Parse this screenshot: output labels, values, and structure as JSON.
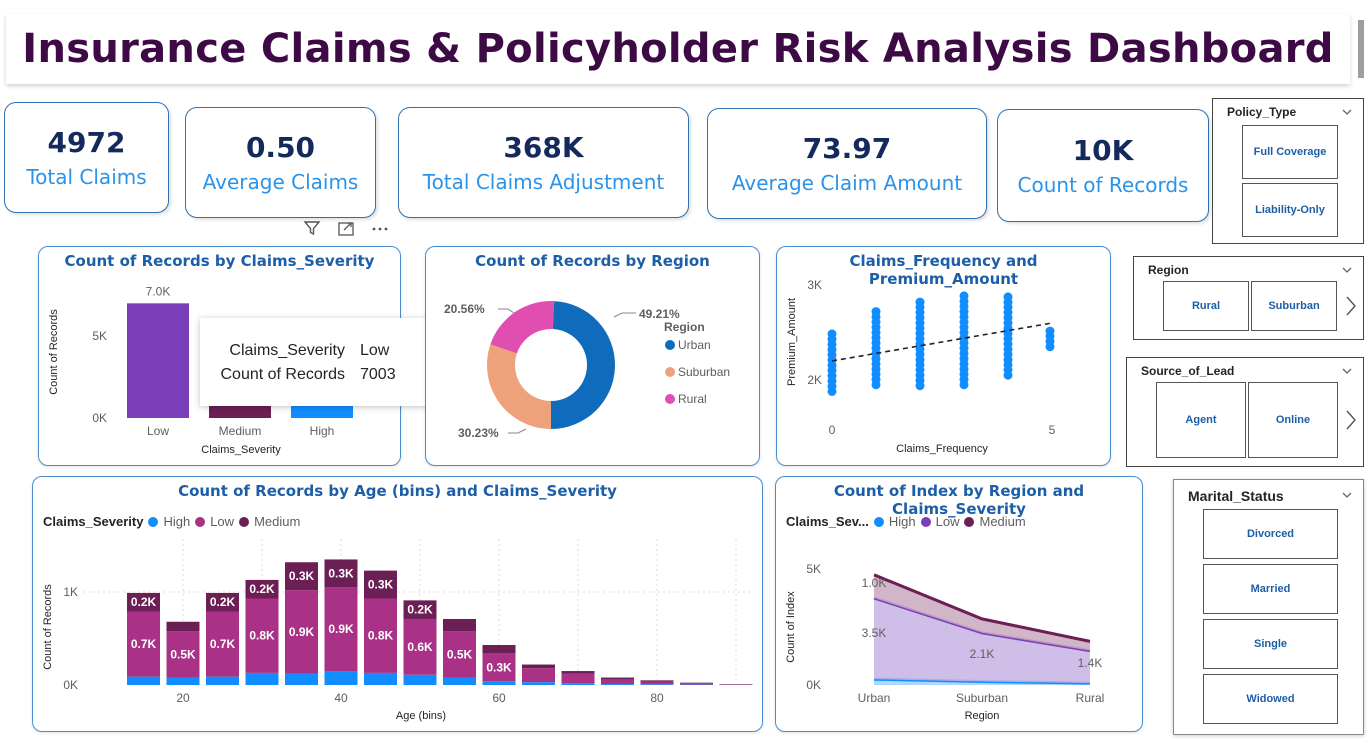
{
  "title": "Insurance Claims & Policyholder Risk Analysis Dashboard",
  "kpis": [
    {
      "value": "4972",
      "label": "Total Claims"
    },
    {
      "value": "0.50",
      "label": "Average Claims"
    },
    {
      "value": "368K",
      "label": "Total Claims Adjustment"
    },
    {
      "value": "73.97",
      "label": "Average Claim Amount"
    },
    {
      "value": "10K",
      "label": "Count of Records"
    }
  ],
  "visual_header_icons": [
    "filter-icon",
    "focus-mode-icon",
    "more-options-icon"
  ],
  "colors": {
    "title": "#3d0a45",
    "kpi_value": "#152a5c",
    "kpi_label": "#2b93e8",
    "card_title": "#1c5ea8",
    "high": "#118DFF",
    "low": "#A93286",
    "medium": "#6B1F55",
    "urban": "#0F6CBD",
    "suburban": "#EEA27C",
    "rural": "#E04EAF",
    "low_bar": "#7A3FB8"
  },
  "slicers": {
    "policy_type": {
      "title": "Policy_Type",
      "options": [
        "Full Coverage",
        "Liability-Only"
      ]
    },
    "region": {
      "title": "Region",
      "options": [
        "Rural",
        "Suburban"
      ]
    },
    "source_of_lead": {
      "title": "Source_of_Lead",
      "options": [
        "Agent",
        "Online"
      ]
    },
    "marital_status": {
      "title": "Marital_Status",
      "options": [
        "Divorced",
        "Married",
        "Single",
        "Widowed"
      ]
    }
  },
  "tooltip": {
    "k1": "Claims_Severity",
    "v1": "Low",
    "k2": "Count of Records",
    "v2": "7003"
  },
  "chart_data": [
    {
      "type": "bar",
      "title": "Count of Records by Claims_Severity",
      "categories": [
        "Low",
        "Medium",
        "High"
      ],
      "values": [
        7003,
        1300,
        1700
      ],
      "data_labels": [
        "7.0K",
        "",
        ""
      ],
      "xlabel": "Claims_Severity",
      "ylabel": "Count of Records",
      "yticks": [
        "0K",
        "5K"
      ],
      "ylim": [
        0,
        8000
      ]
    },
    {
      "type": "pie",
      "title": "Count of Records by Region",
      "legend_title": "Region",
      "categories": [
        "Urban",
        "Suburban",
        "Rural"
      ],
      "values": [
        49.21,
        30.23,
        20.56
      ],
      "data_labels": [
        "49.21%",
        "30.23%",
        "20.56%"
      ]
    },
    {
      "type": "scatter",
      "title": "Claims_Frequency and Premium_Amount",
      "xlabel": "Claims_Frequency",
      "ylabel": "Premium_Amount",
      "xticks": [
        "0",
        "5"
      ],
      "yticks": [
        "2K",
        "3K"
      ],
      "xlim": [
        0,
        5
      ],
      "ylim": [
        1800,
        3000
      ],
      "series": [
        {
          "x": 0,
          "y_min": 1880,
          "y_max": 2520
        },
        {
          "x": 1,
          "y_min": 1950,
          "y_max": 2720
        },
        {
          "x": 2,
          "y_min": 1940,
          "y_max": 2850
        },
        {
          "x": 3,
          "y_min": 1950,
          "y_max": 2930
        },
        {
          "x": 4,
          "y_min": 2050,
          "y_max": 2900
        },
        {
          "x": 5,
          "y_min": 2350,
          "y_max": 2550
        }
      ],
      "trend": {
        "x": [
          0,
          5
        ],
        "y": [
          2200,
          2600
        ]
      }
    },
    {
      "type": "bar",
      "stacked": true,
      "title": "Count of Records by Age (bins) and Claims_Severity",
      "legend_title": "Claims_Severity",
      "xlabel": "Age (bins)",
      "ylabel": "Count of Records",
      "xticks": [
        "20",
        "40",
        "60",
        "80"
      ],
      "yticks": [
        "0K",
        "1K"
      ],
      "categories": [
        15,
        20,
        25,
        30,
        35,
        40,
        45,
        50,
        55,
        60,
        65,
        70,
        75,
        80,
        85,
        90
      ],
      "series": [
        {
          "name": "High",
          "values": [
            90,
            80,
            90,
            130,
            120,
            150,
            130,
            110,
            80,
            40,
            30,
            20,
            10,
            8,
            5,
            2
          ]
        },
        {
          "name": "Low",
          "values": [
            700,
            500,
            700,
            800,
            900,
            900,
            800,
            600,
            500,
            300,
            150,
            100,
            50,
            30,
            15,
            5
          ]
        },
        {
          "name": "Medium",
          "values": [
            200,
            100,
            200,
            200,
            300,
            300,
            300,
            200,
            130,
            90,
            40,
            30,
            20,
            12,
            5,
            3
          ]
        }
      ],
      "data_labels": {
        "Low": [
          "0.7K",
          "0.5K",
          "0.7K",
          "0.8K",
          "0.9K",
          "0.9K",
          "0.8K",
          "0.6K",
          "0.5K",
          "0.3K",
          "",
          "",
          "",
          "",
          "",
          ""
        ],
        "Medium": [
          "0.2K",
          "",
          "0.2K",
          "0.2K",
          "0.3K",
          "0.3K",
          "0.3K",
          "0.2K",
          "",
          "",
          "",
          "",
          "",
          "",
          "",
          ""
        ]
      }
    },
    {
      "type": "area",
      "stacked": true,
      "title": "Count of Index by Region and Claims_Severity",
      "legend_title": "Claims_Sev...",
      "xlabel": "Region",
      "ylabel": "Count of Index",
      "categories": [
        "Urban",
        "Suburban",
        "Rural"
      ],
      "yticks": [
        "0K",
        "5K"
      ],
      "ylim": [
        0,
        5000
      ],
      "series": [
        {
          "name": "High",
          "values": [
            250,
            150,
            80
          ]
        },
        {
          "name": "Low",
          "values": [
            3500,
            2100,
            1400
          ]
        },
        {
          "name": "Medium",
          "values": [
            1000,
            600,
            400
          ]
        }
      ],
      "data_labels": [
        "1.0K",
        "3.5K",
        "2.1K",
        "1.4K"
      ]
    }
  ]
}
